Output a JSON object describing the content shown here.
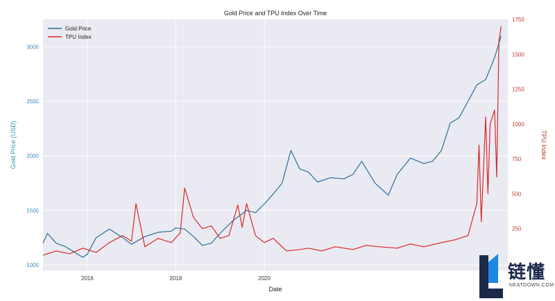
{
  "chart_data": {
    "type": "line",
    "title": "Gold Price and TPU Index Over Time",
    "xlabel": "Date",
    "ylabel_left": "Gold Price (USD)",
    "ylabel_right": "TPU Index",
    "xlim": [
      2015.0,
      2025.5
    ],
    "ylim_left": [
      950,
      3250
    ],
    "ylim_right": [
      -50,
      1750
    ],
    "x_ticks": [
      2016,
      2018,
      2020
    ],
    "x_tick_labels": [
      "2016",
      "2018",
      "2020"
    ],
    "y_left_ticks": [
      1000,
      1500,
      2000,
      2500,
      3000
    ],
    "y_right_ticks": [
      250,
      500,
      750,
      1000,
      1250,
      1500,
      1750
    ],
    "grid": true,
    "legend_position": "top-left",
    "colors": {
      "gold": "#2a6f97",
      "tpu": "#d62728",
      "plot_bg": "#eaeaf2",
      "left_axis_text": "#3d8fb5",
      "right_axis_text": "#c0392b"
    },
    "series": [
      {
        "name": "Gold Price",
        "axis": "left",
        "x": [
          2015.0,
          2015.1,
          2015.3,
          2015.5,
          2015.7,
          2015.9,
          2016.0,
          2016.2,
          2016.5,
          2016.8,
          2017.0,
          2017.3,
          2017.6,
          2017.9,
          2018.0,
          2018.2,
          2018.4,
          2018.6,
          2018.8,
          2019.0,
          2019.3,
          2019.6,
          2019.8,
          2020.0,
          2020.2,
          2020.4,
          2020.6,
          2020.8,
          2021.0,
          2021.2,
          2021.5,
          2021.8,
          2022.0,
          2022.2,
          2022.5,
          2022.8,
          2023.0,
          2023.3,
          2023.6,
          2023.8,
          2024.0,
          2024.2,
          2024.4,
          2024.6,
          2024.8,
          2025.0,
          2025.2,
          2025.35
        ],
        "values": [
          1200,
          1290,
          1200,
          1170,
          1120,
          1070,
          1100,
          1250,
          1330,
          1250,
          1190,
          1260,
          1300,
          1310,
          1340,
          1330,
          1260,
          1180,
          1200,
          1290,
          1410,
          1500,
          1480,
          1560,
          1650,
          1750,
          2050,
          1880,
          1850,
          1760,
          1800,
          1790,
          1830,
          1950,
          1750,
          1640,
          1830,
          1980,
          1930,
          1950,
          2050,
          2300,
          2350,
          2500,
          2650,
          2700,
          2900,
          3100
        ]
      },
      {
        "name": "TPU Index",
        "axis": "right",
        "x": [
          2015.0,
          2015.3,
          2015.6,
          2015.9,
          2016.2,
          2016.5,
          2016.8,
          2017.0,
          2017.1,
          2017.3,
          2017.6,
          2017.9,
          2018.1,
          2018.2,
          2018.4,
          2018.6,
          2018.8,
          2019.0,
          2019.2,
          2019.4,
          2019.5,
          2019.6,
          2019.8,
          2020.0,
          2020.2,
          2020.5,
          2020.8,
          2021.0,
          2021.3,
          2021.6,
          2022.0,
          2022.3,
          2022.6,
          2023.0,
          2023.3,
          2023.6,
          2024.0,
          2024.3,
          2024.6,
          2024.8,
          2024.85,
          2024.9,
          2025.0,
          2025.05,
          2025.1,
          2025.2,
          2025.25,
          2025.3,
          2025.35
        ],
        "values": [
          60,
          90,
          70,
          110,
          80,
          150,
          200,
          160,
          430,
          120,
          180,
          150,
          220,
          540,
          330,
          250,
          270,
          180,
          200,
          420,
          260,
          430,
          200,
          150,
          180,
          90,
          100,
          110,
          90,
          120,
          100,
          130,
          120,
          110,
          140,
          120,
          150,
          170,
          200,
          430,
          850,
          300,
          1050,
          500,
          1000,
          1100,
          620,
          1600,
          1700
        ]
      }
    ]
  },
  "watermark": {
    "cn_text": "链懂",
    "en_text": "NEATDOWN.COM"
  }
}
